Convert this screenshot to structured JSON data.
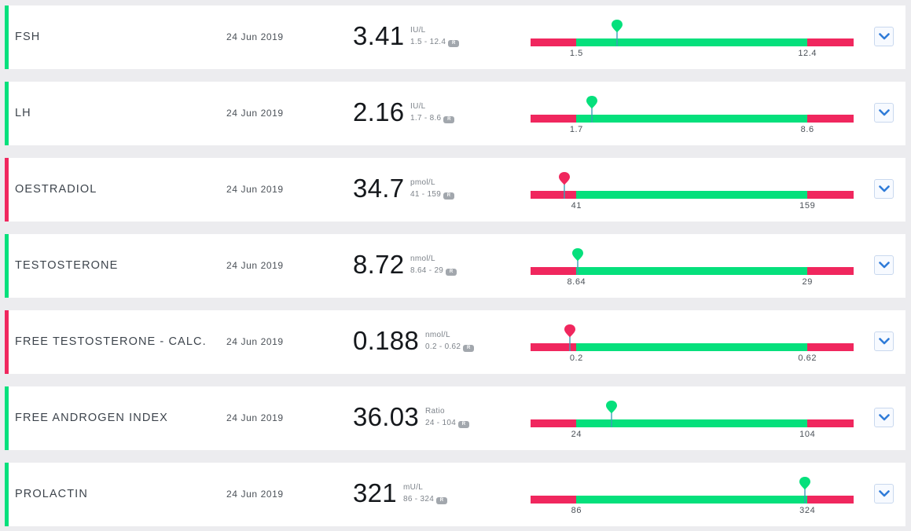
{
  "colors": {
    "in_range": "#05e07c",
    "out_of_range": "#f0275e",
    "pin_stem": "#3aa0b8",
    "chevron": "#2f7bd8"
  },
  "tests": [
    {
      "name": "FSH",
      "date": "24 Jun 2019",
      "value": "3.41",
      "value_num": 3.41,
      "unit": "IU/L",
      "range": "1.5 - 12.4",
      "low": "1.5",
      "high": "12.4",
      "low_num": 1.5,
      "high_num": 12.4,
      "status": "normal",
      "range_badge": "R",
      "expand_icon": "chevron-down-icon"
    },
    {
      "name": "LH",
      "date": "24 Jun 2019",
      "value": "2.16",
      "value_num": 2.16,
      "unit": "IU/L",
      "range": "1.7 - 8.6",
      "low": "1.7",
      "high": "8.6",
      "low_num": 1.7,
      "high_num": 8.6,
      "status": "normal",
      "range_badge": "R",
      "expand_icon": "chevron-down-icon"
    },
    {
      "name": "OESTRADIOL",
      "date": "24 Jun 2019",
      "value": "34.7",
      "value_num": 34.7,
      "unit": "pmol/L",
      "range": "41 - 159",
      "low": "41",
      "high": "159",
      "low_num": 41,
      "high_num": 159,
      "status": "abnormal",
      "range_badge": "R",
      "expand_icon": "chevron-down-icon"
    },
    {
      "name": "TESTOSTERONE",
      "date": "24 Jun 2019",
      "value": "8.72",
      "value_num": 8.72,
      "unit": "nmol/L",
      "range": "8.64 - 29",
      "low": "8.64",
      "high": "29",
      "low_num": 8.64,
      "high_num": 29,
      "status": "normal",
      "range_badge": "R",
      "expand_icon": "chevron-down-icon"
    },
    {
      "name": "FREE TESTOSTERONE - CALC.",
      "date": "24 Jun 2019",
      "value": "0.188",
      "value_num": 0.188,
      "unit": "nmol/L",
      "range": "0.2 - 0.62",
      "low": "0.2",
      "high": "0.62",
      "low_num": 0.2,
      "high_num": 0.62,
      "status": "abnormal",
      "range_badge": "R",
      "expand_icon": "chevron-down-icon"
    },
    {
      "name": "FREE ANDROGEN INDEX",
      "date": "24 Jun 2019",
      "value": "36.03",
      "value_num": 36.03,
      "unit": "Ratio",
      "range": "24 - 104",
      "low": "24",
      "high": "104",
      "low_num": 24,
      "high_num": 104,
      "status": "normal",
      "range_badge": "R",
      "expand_icon": "chevron-down-icon"
    },
    {
      "name": "PROLACTIN",
      "date": "24 Jun 2019",
      "value": "321",
      "value_num": 321,
      "unit": "mU/L",
      "range": "86 - 324",
      "low": "86",
      "high": "324",
      "low_num": 86,
      "high_num": 324,
      "status": "normal",
      "range_badge": "R",
      "expand_icon": "chevron-down-icon"
    }
  ]
}
